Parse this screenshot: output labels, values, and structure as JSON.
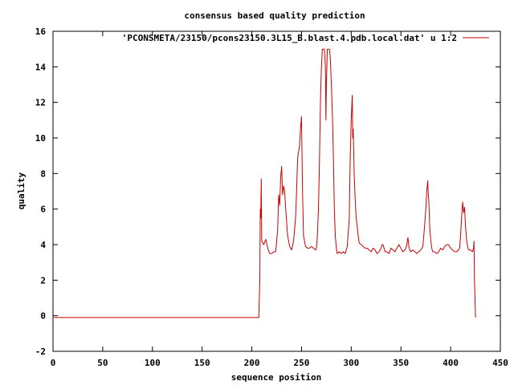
{
  "chart_data": {
    "type": "line",
    "title": "consensus based quality prediction",
    "xlabel": "sequence position",
    "ylabel": "quality",
    "xlim": [
      0,
      450
    ],
    "ylim": [
      -2,
      16
    ],
    "x_ticks": [
      0,
      50,
      100,
      150,
      200,
      250,
      300,
      350,
      400,
      450
    ],
    "y_ticks": [
      -2,
      0,
      2,
      4,
      6,
      8,
      10,
      12,
      14,
      16
    ],
    "grid": false,
    "legend_position": "top-right",
    "series": [
      {
        "name": "'PCONSMETA/23150/pcons23150.3L15_B.blast.4.pdb.local.dat' u 1:2",
        "color": "#cc0000",
        "x": [
          1,
          207,
          208,
          208.5,
          209,
          209.5,
          210,
          212,
          214,
          216,
          218,
          220,
          222,
          224,
          226,
          227,
          228,
          229,
          230,
          231,
          232,
          233,
          234,
          236,
          238,
          240,
          242,
          244,
          245,
          246,
          247,
          248,
          249,
          250,
          251,
          252,
          254,
          256,
          258,
          260,
          262,
          264,
          265,
          266,
          267,
          268,
          269,
          270,
          271,
          272,
          273,
          274,
          274.5,
          275,
          276,
          277,
          278,
          279,
          280,
          281,
          282,
          283,
          284,
          285,
          286,
          288,
          290,
          292,
          294,
          296,
          298,
          299,
          300,
          301,
          301.5,
          302,
          303,
          304,
          305,
          306,
          307,
          308,
          310,
          312,
          314,
          316,
          318,
          320,
          322,
          324,
          326,
          328,
          330,
          331,
          332,
          333,
          334,
          336,
          338,
          340,
          342,
          344,
          346,
          348,
          350,
          352,
          354,
          355,
          356,
          357,
          358,
          359,
          360,
          362,
          364,
          366,
          368,
          370,
          372,
          373,
          374,
          375,
          376,
          377,
          377.5,
          378,
          379,
          380,
          381,
          382,
          384,
          386,
          388,
          390,
          392,
          394,
          396,
          398,
          400,
          402,
          404,
          406,
          408,
          409,
          410,
          411,
          412,
          413,
          414,
          415,
          416,
          417,
          418,
          420,
          422,
          423,
          423.5,
          424,
          425
        ],
        "y": [
          -0.1,
          -0.1,
          2,
          6,
          5.5,
          7.7,
          4.2,
          4.0,
          4.3,
          3.8,
          3.5,
          3.5,
          3.6,
          3.6,
          4.8,
          6.8,
          6.2,
          7.8,
          8.4,
          6.8,
          7.3,
          7.0,
          6.1,
          4.5,
          3.9,
          3.7,
          4.2,
          5.5,
          7.0,
          8.8,
          9.2,
          9.6,
          10.5,
          11.2,
          7.0,
          4.5,
          3.9,
          3.8,
          3.8,
          3.9,
          3.8,
          3.7,
          3.8,
          4.5,
          6.0,
          8.5,
          12.0,
          14.0,
          15.0,
          15.0,
          15.0,
          14.0,
          11.0,
          13.0,
          15.0,
          15.0,
          15.0,
          14.5,
          13.0,
          11.5,
          9.0,
          6.0,
          4.5,
          3.8,
          3.5,
          3.6,
          3.5,
          3.6,
          3.5,
          3.9,
          5.5,
          9.0,
          11.0,
          12.4,
          10.0,
          10.5,
          8.0,
          6.5,
          5.5,
          5.0,
          4.5,
          4.1,
          4.0,
          3.9,
          3.8,
          3.8,
          3.7,
          3.6,
          3.8,
          3.7,
          3.5,
          3.6,
          3.8,
          4.0,
          4.0,
          3.8,
          3.6,
          3.6,
          3.5,
          3.8,
          3.7,
          3.6,
          3.8,
          4.0,
          3.8,
          3.6,
          3.7,
          3.8,
          4.0,
          4.4,
          3.9,
          3.7,
          3.6,
          3.7,
          3.6,
          3.5,
          3.6,
          3.7,
          3.9,
          4.5,
          5.2,
          6.0,
          7.0,
          7.6,
          6.8,
          6.5,
          5.0,
          4.2,
          3.8,
          3.6,
          3.6,
          3.5,
          3.6,
          3.8,
          3.7,
          3.9,
          4.0,
          4.0,
          3.8,
          3.7,
          3.6,
          3.6,
          3.7,
          3.8,
          4.5,
          5.5,
          6.4,
          5.8,
          6.1,
          5.0,
          4.3,
          3.9,
          3.7,
          3.7,
          3.6,
          3.8,
          4.2,
          2.0,
          -0.1
        ]
      }
    ]
  }
}
